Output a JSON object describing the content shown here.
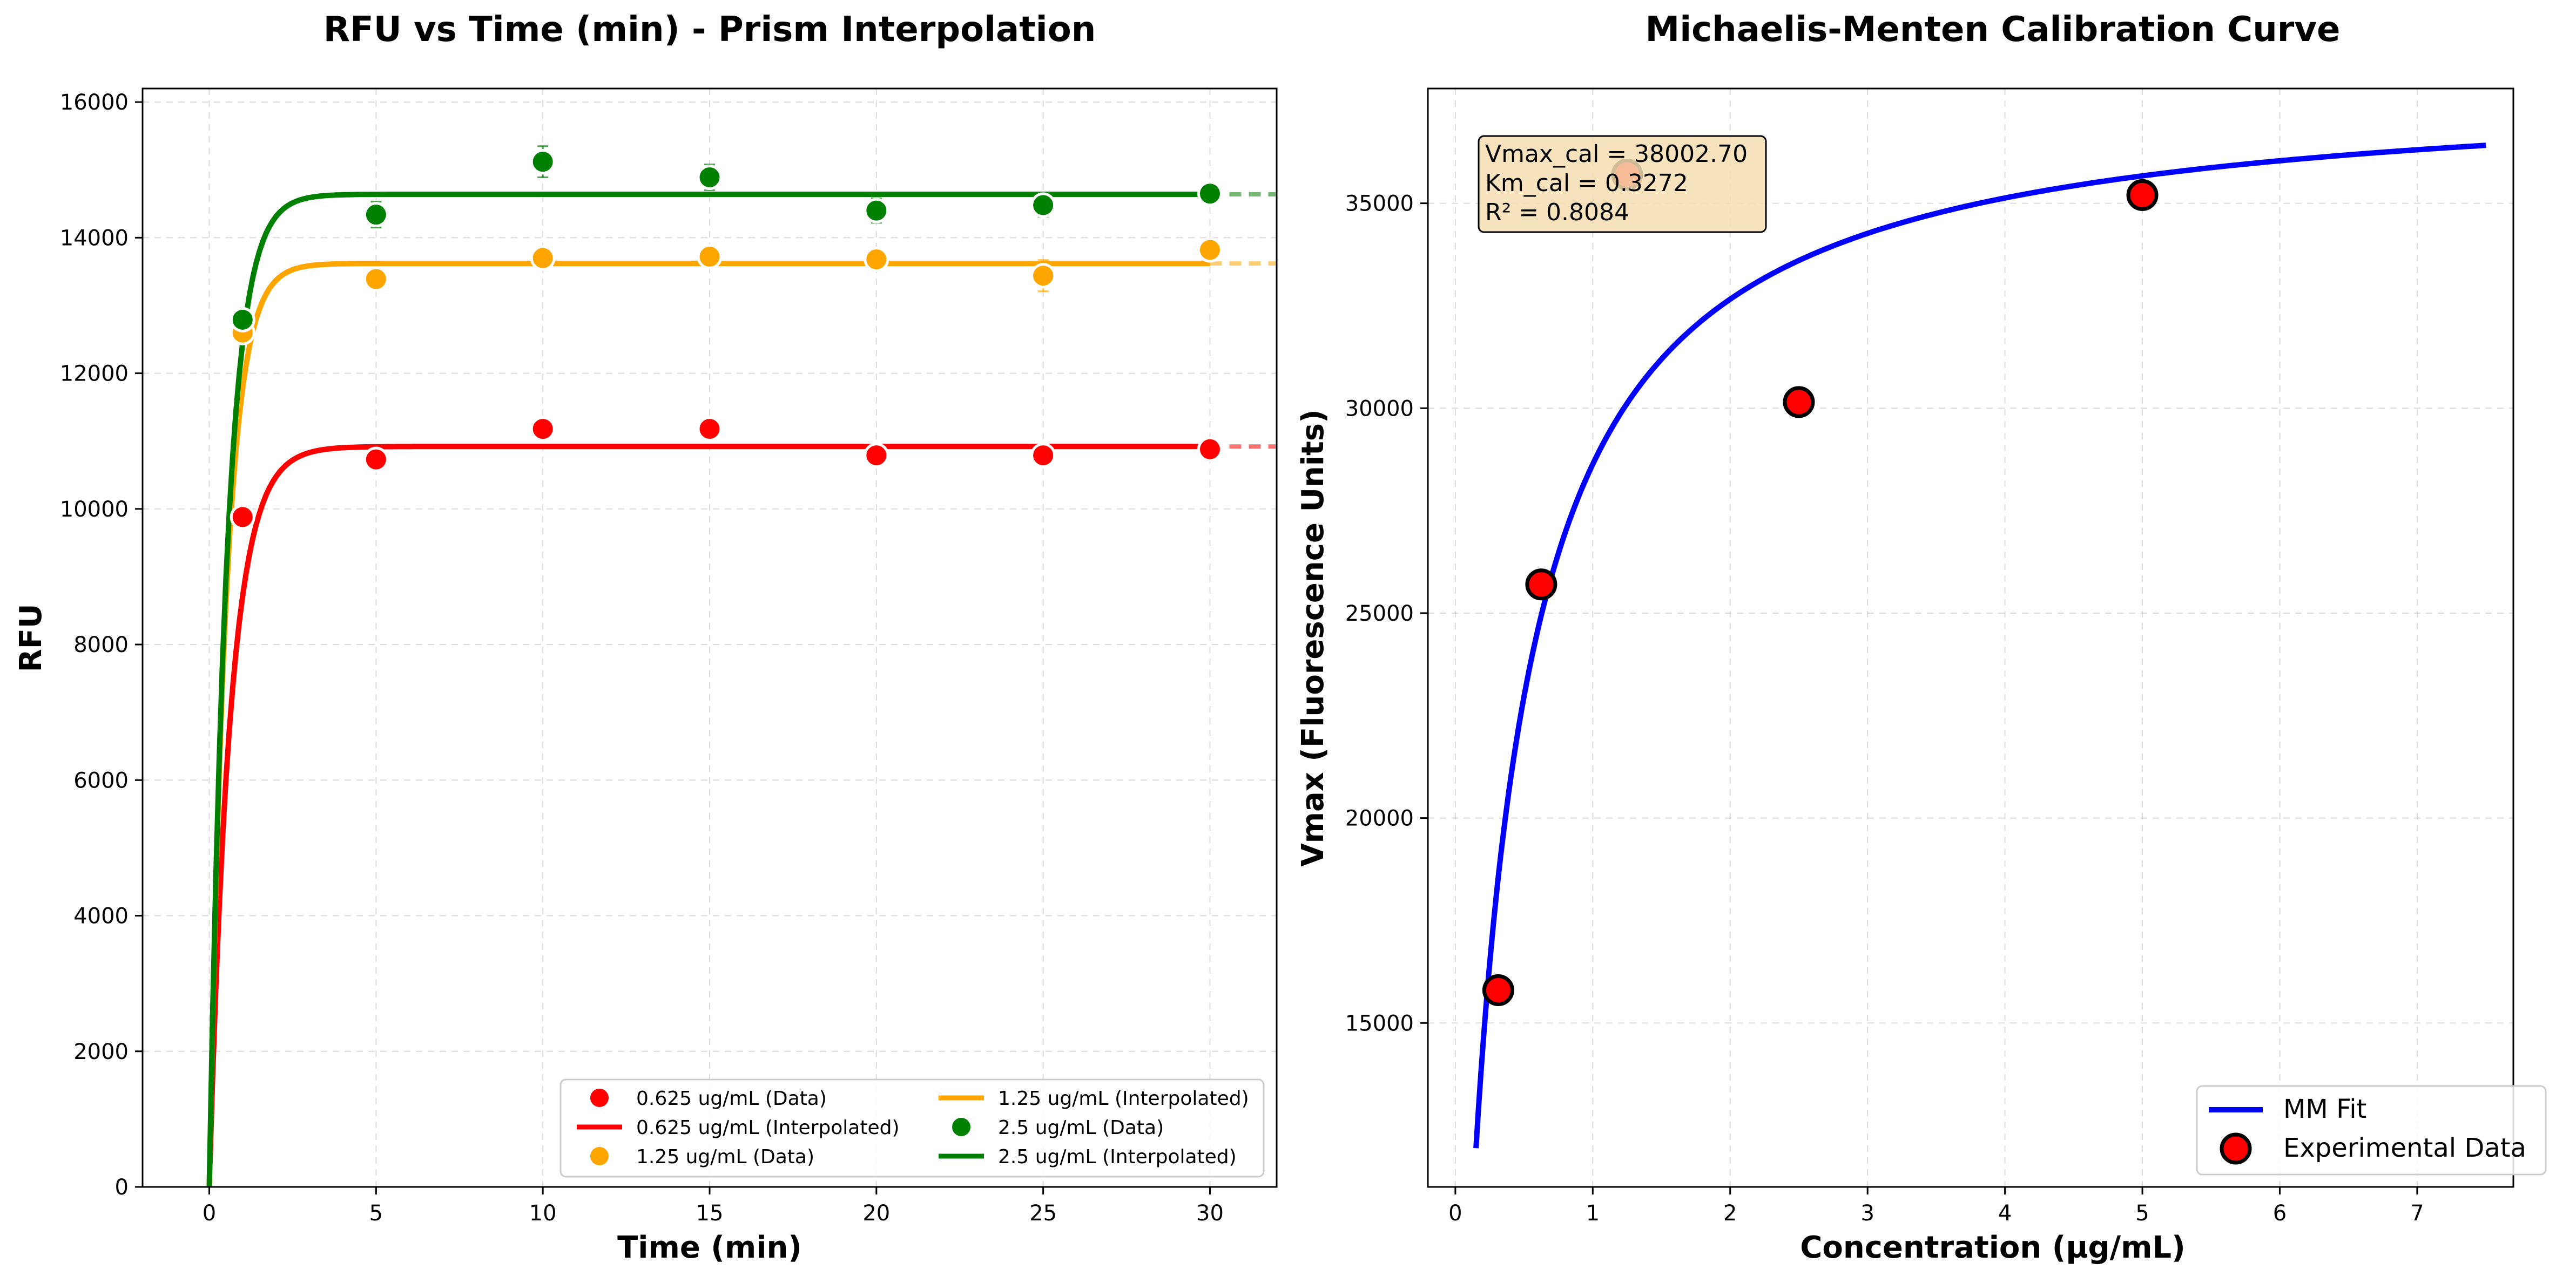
{
  "chart_data": [
    {
      "type": "line",
      "title": "RFU vs Time (min) - Prism Interpolation",
      "xlabel": "Time (min)",
      "ylabel": "RFU",
      "xlim": [
        -2,
        32
      ],
      "ylim": [
        0,
        16200
      ],
      "xticks": [
        0,
        5,
        10,
        15,
        20,
        25,
        30
      ],
      "yticks": [
        0,
        2000,
        4000,
        6000,
        8000,
        10000,
        12000,
        14000,
        16000
      ],
      "grid": true,
      "legend_position": "bottom-right",
      "legend": [
        "0.625 ug/mL (Data)",
        "0.625 ug/mL (Interpolated)",
        "1.25 ug/mL (Data)",
        "1.25 ug/mL (Interpolated)",
        "2.5 ug/mL (Data)",
        "2.5 ug/mL (Interpolated)"
      ],
      "series": [
        {
          "name": "0.625 ug/mL",
          "color": "#ff0000",
          "x": [
            1,
            5,
            10,
            15,
            20,
            25,
            30
          ],
          "y": [
            9880,
            10730,
            11180,
            11180,
            10790,
            10790,
            10880
          ],
          "err": [
            60,
            110,
            80,
            110,
            70,
            80,
            70
          ],
          "fit": {
            "plateau": 10920,
            "k": 1.6
          }
        },
        {
          "name": "1.25 ug/mL",
          "color": "#ffa500",
          "x": [
            1,
            5,
            10,
            15,
            20,
            25,
            30
          ],
          "y": [
            12600,
            13390,
            13700,
            13720,
            13680,
            13440,
            13820
          ],
          "err": [
            70,
            90,
            80,
            80,
            80,
            230,
            130
          ],
          "fit": {
            "plateau": 13620,
            "k": 2.0
          }
        },
        {
          "name": "2.5 ug/mL",
          "color": "#008000",
          "x": [
            1,
            5,
            10,
            15,
            20,
            25,
            30
          ],
          "y": [
            12790,
            14340,
            15120,
            14890,
            14400,
            14480,
            14650
          ],
          "err": [
            60,
            190,
            230,
            190,
            180,
            170,
            150
          ],
          "fit": {
            "plateau": 14640,
            "k": 1.9
          }
        }
      ]
    },
    {
      "type": "scatter",
      "title": "Michaelis-Menten Calibration Curve",
      "xlabel": "Concentration (µg/mL)",
      "ylabel": "Vmax (Fluorescence Units)",
      "xlim": [
        -0.2,
        7.7
      ],
      "ylim": [
        11000,
        37800
      ],
      "xticks": [
        0,
        1,
        2,
        3,
        4,
        5,
        6,
        7
      ],
      "yticks": [
        15000,
        20000,
        25000,
        30000,
        35000
      ],
      "grid": true,
      "legend_position": "bottom-right",
      "annotation": [
        "Vmax_cal = 38002.70",
        "Km_cal = 0.3272",
        "R² = 0.8084"
      ],
      "fit": {
        "name": "MM Fit",
        "color": "#0000ff",
        "vmax": 38002.7,
        "km": 0.3272,
        "x_range": [
          0.15,
          7.5
        ]
      },
      "points": {
        "name": "Experimental Data",
        "color": "#ff0000",
        "x": [
          0.3125,
          0.625,
          1.25,
          2.5,
          5.0
        ],
        "y": [
          15800,
          25700,
          35700,
          30150,
          35200
        ]
      }
    }
  ]
}
